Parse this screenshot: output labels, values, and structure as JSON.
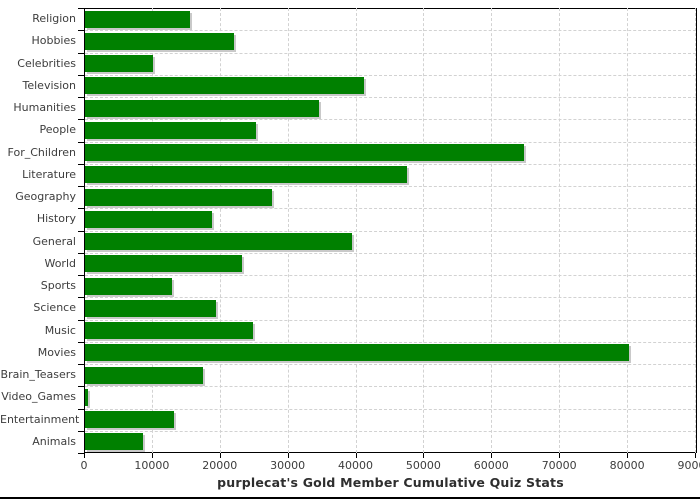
{
  "chart_data": {
    "type": "bar",
    "orientation": "horizontal",
    "title": "purplecat's Gold Member Cumulative Quiz Stats",
    "xlabel": "",
    "ylabel": "",
    "categories": [
      "Religion",
      "Hobbies",
      "Celebrities",
      "Television",
      "Humanities",
      "People",
      "For_Children",
      "Literature",
      "Geography",
      "History",
      "General",
      "World",
      "Sports",
      "Science",
      "Music",
      "Movies",
      "Brain_Teasers",
      "Video_Games",
      "Entertainment",
      "Animals"
    ],
    "values": [
      15500,
      22000,
      10000,
      41100,
      34500,
      25200,
      64600,
      47400,
      27600,
      18700,
      39300,
      23200,
      12800,
      19300,
      24700,
      80100,
      17400,
      500,
      13100,
      8500
    ],
    "xlim": [
      0,
      90300
    ],
    "xticks": [
      0,
      10000,
      20000,
      30000,
      40000,
      50000,
      60000,
      70000,
      80000,
      90000
    ],
    "grid": true,
    "legend": "none"
  },
  "colors": {
    "bar": "#008000",
    "bar_shadow": "#c9c9c9",
    "grid": "#d2d2d2",
    "axis": "#000000",
    "label": "#3d3d3d",
    "title": "#2e2e2e"
  }
}
